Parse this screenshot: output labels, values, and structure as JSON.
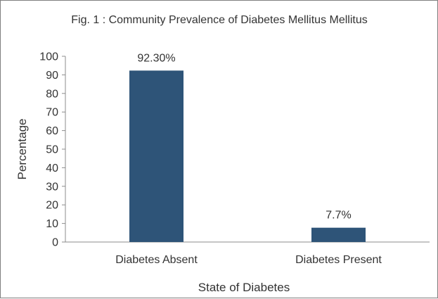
{
  "chart_data": {
    "type": "bar",
    "title": "Fig. 1 : Community Prevalence of Diabetes Mellitus Mellitus",
    "xlabel": "State of Diabetes",
    "ylabel": "Percentage",
    "categories": [
      "Diabetes Absent",
      "Diabetes Present"
    ],
    "values": [
      92.3,
      7.7
    ],
    "data_labels": [
      "92.30%",
      "7.7%"
    ],
    "ylim": [
      0,
      100
    ],
    "yticks": [
      "0",
      "10",
      "20",
      "30",
      "40",
      "50",
      "60",
      "70",
      "80",
      "90",
      "100"
    ],
    "bar_color": "#2e5478",
    "grid": false,
    "legend": "none"
  }
}
